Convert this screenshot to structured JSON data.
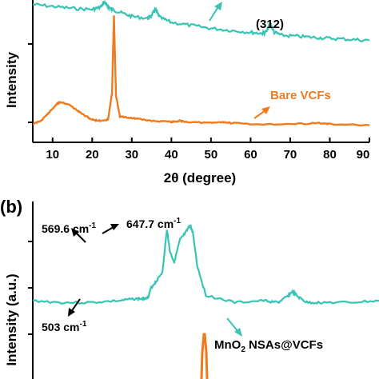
{
  "colors": {
    "teal": "#37c4b4",
    "orange": "#f07a1e",
    "axis": "#000000"
  },
  "chart_data": [
    {
      "type": "line",
      "panel": "a",
      "xlabel": "2θ (degree)",
      "ylabel": "Intensity",
      "xlim": [
        5,
        90
      ],
      "x_ticks": [
        "10",
        "20",
        "30",
        "40",
        "50",
        "60",
        "70",
        "80",
        "90"
      ],
      "series": [
        {
          "color": "#37c4b4",
          "x": [
            5,
            10,
            15,
            20,
            22,
            23,
            24,
            25,
            27,
            30,
            34,
            35,
            36,
            37,
            40,
            45,
            50,
            55,
            60,
            63,
            64,
            65,
            66,
            68,
            72,
            76,
            80,
            85,
            90
          ],
          "y": [
            98,
            96,
            94,
            93,
            95,
            100,
            96,
            93,
            90,
            86,
            84,
            87,
            93,
            85,
            80,
            77,
            74,
            72,
            70,
            69,
            71,
            78,
            70,
            67,
            66,
            65,
            64,
            63,
            62
          ]
        },
        {
          "name": "Bare VCFs",
          "color": "#f07a1e",
          "x": [
            5,
            7,
            9,
            11,
            12,
            14,
            16,
            18,
            20,
            22,
            24,
            25,
            25.5,
            26,
            27,
            29,
            31,
            35,
            40,
            42,
            44,
            50,
            53,
            55,
            60,
            70,
            77,
            80,
            90
          ],
          "y": [
            2,
            5,
            12,
            20,
            22,
            20,
            15,
            10,
            6,
            5,
            6,
            30,
            100,
            28,
            9,
            8,
            7,
            5,
            4,
            5,
            4,
            3,
            4,
            3,
            2,
            2,
            3,
            2,
            1
          ]
        }
      ],
      "annotations": [
        "(312)",
        "Bare VCFs"
      ]
    },
    {
      "type": "line",
      "panel": "b",
      "ylabel": "Intensity (a.u.)",
      "annotations": [
        "569.6 cm",
        "647.7 cm",
        "503 cm"
      ],
      "superscript": "-1",
      "series_label_prefix": "MnO",
      "series_label_sub": "2",
      "series_label_suffix": " NSAs@VCFs",
      "series": [
        {
          "color": "#37c4b4",
          "x": [
            100,
            200,
            300,
            400,
            450,
            480,
            500,
            510,
            530,
            550,
            565,
            575,
            590,
            610,
            630,
            645,
            655,
            670,
            700,
            800,
            900,
            950,
            980,
            1000,
            1020,
            1050,
            1100,
            1200,
            1300
          ],
          "y": [
            3,
            2,
            2,
            3,
            4,
            4,
            5,
            10,
            14,
            19,
            42,
            30,
            24,
            36,
            40,
            44,
            40,
            22,
            6,
            2,
            3,
            2,
            5,
            8,
            5,
            2,
            2,
            2,
            3
          ]
        }
      ]
    }
  ],
  "panel_b_label": "(b)"
}
